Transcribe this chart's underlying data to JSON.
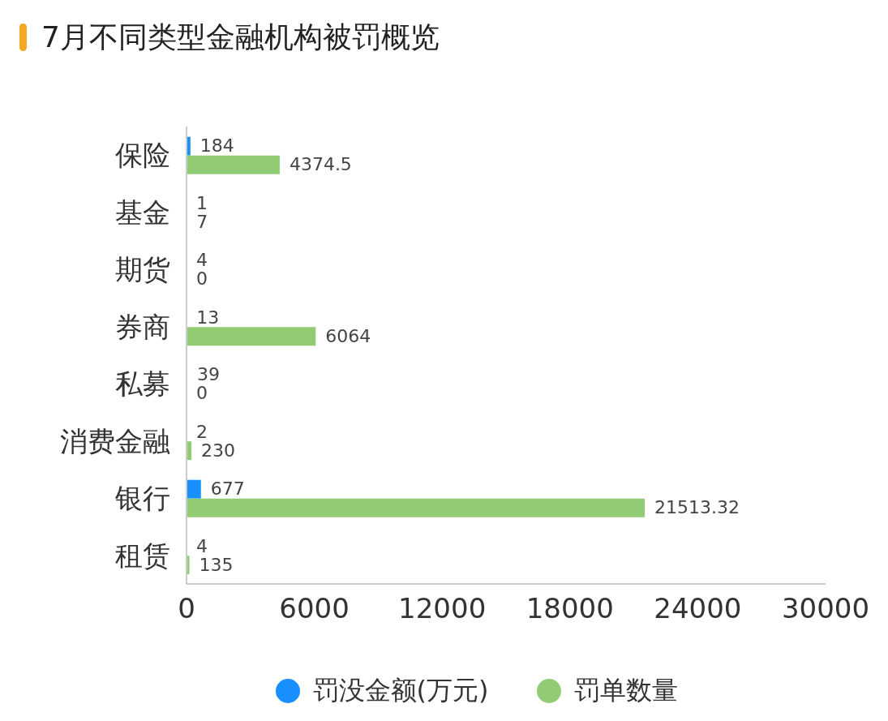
{
  "chart_data": {
    "type": "bar",
    "orientation": "horizontal",
    "title": "7月不同类型金融机构被罚概览",
    "categories": [
      "保险",
      "基金",
      "期货",
      "券商",
      "私募",
      "消费金融",
      "银行",
      "租赁"
    ],
    "series": [
      {
        "name": "罚没金额(万元)",
        "color": "#1890ff",
        "values": [
          184,
          1,
          4,
          13,
          39,
          2,
          677,
          4
        ]
      },
      {
        "name": "罚单数量",
        "color": "#91cc75",
        "values": [
          4374.5,
          7,
          0,
          6064,
          0,
          230,
          21513.32,
          135
        ]
      }
    ],
    "xlim": [
      0,
      30000
    ],
    "xticks": [
      0,
      6000,
      12000,
      18000,
      24000,
      30000
    ],
    "grid": false,
    "legend": "bottom",
    "data_labels": true
  }
}
